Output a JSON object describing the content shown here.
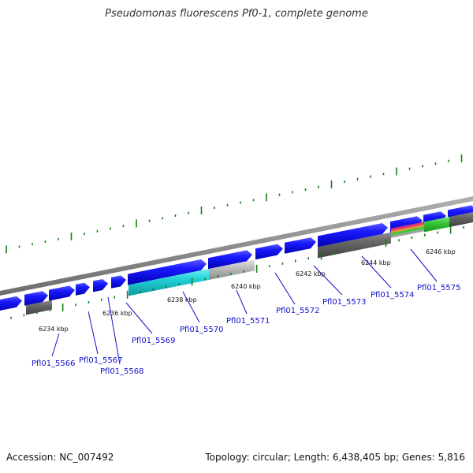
{
  "title": "Pseudomonas fluorescens Pf0-1, complete genome",
  "accession_label": "Accession: NC_007492",
  "summary_label": "Topology: circular; Length: 6,438,405 bp; Genes: 5,816",
  "colors": {
    "cds": "#1010ee",
    "tick": "#1a7f1a",
    "backbone": "#8a8a8a",
    "label": "#1010c8",
    "rna_cyan": "#20c8d0",
    "pseudo_gray": "#b8b8b8",
    "dark_gray": "#606060",
    "feature_green": "#38c838",
    "feature_pink": "#e0307a",
    "feature_orange": "#e89030"
  },
  "scale_labels": [
    "6234 kbp",
    "6236 kbp",
    "6238 kbp",
    "6240 kbp",
    "6242 kbp",
    "6244 kbp",
    "6246 kbp"
  ],
  "gene_labels": [
    "Pfl01_5566",
    "Pfl01_5567",
    "Pfl01_5568",
    "Pfl01_5569",
    "Pfl01_5570",
    "Pfl01_5571",
    "Pfl01_5572",
    "Pfl01_5573",
    "Pfl01_5574",
    "Pfl01_5575"
  ]
}
